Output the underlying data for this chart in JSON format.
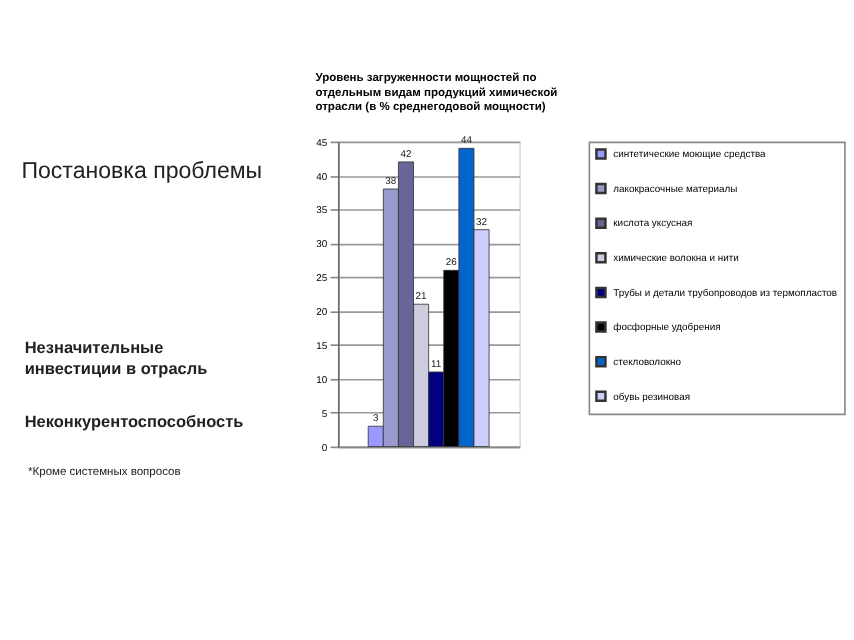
{
  "chart_data": {
    "type": "bar",
    "title": "Уровень загруженности мощностей по отдельным видам продукций химической отрасли (в % среднегодовой мощности)",
    "annotations": [
      "Постановка проблемы",
      "Незначительные инвестиции в отрасль",
      "Неконкурентоспособность",
      "*Кроме системных вопросов"
    ],
    "categories": [
      null
    ],
    "series": [
      {
        "name": "синтетические моющие средства",
        "color": "#9999ff",
        "values": [
          3
        ]
      },
      {
        "name": "лакокрасочные материалы",
        "color": "#9999cc",
        "values": [
          38
        ]
      },
      {
        "name": "кислота уксусная",
        "color": "#666699",
        "values": [
          42
        ]
      },
      {
        "name": "химические волокна и нити",
        "color": "#ccccdd",
        "values": [
          21
        ]
      },
      {
        "name": "Трубы и детали трубопроводов из термопластов",
        "color": "#000080",
        "values": [
          11
        ]
      },
      {
        "name": "фосфорные удобрения",
        "color": "#000000",
        "values": [
          26
        ]
      },
      {
        "name": "стекловолокно",
        "color": "#0066cc",
        "values": [
          44
        ]
      },
      {
        "name": "обувь резиновая",
        "color": "#ccccff",
        "values": [
          32
        ]
      }
    ],
    "ylim": [
      0,
      45
    ],
    "yticks": [
      0,
      5,
      10,
      15,
      20,
      25,
      30,
      35,
      40,
      45
    ],
    "grid": "y",
    "data_labels": true,
    "legend": "right"
  }
}
